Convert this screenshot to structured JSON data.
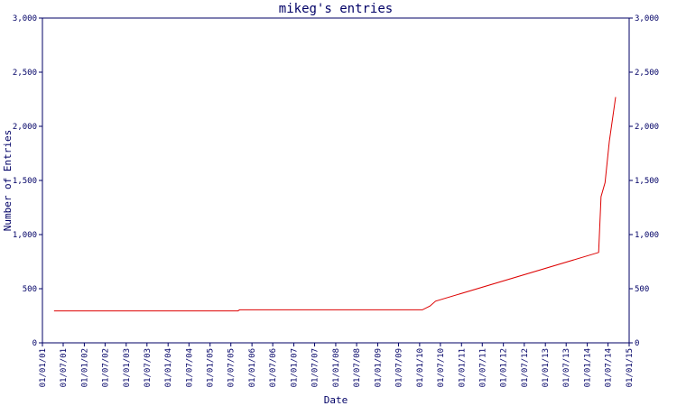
{
  "chart_data": {
    "type": "line",
    "title": "mikeg's entries",
    "x_label": "Date",
    "y_label": "Number of Entries",
    "x": [
      "12/04/01",
      "01/09/05",
      "15/09/05",
      "25/01/10",
      "01/04/10",
      "20/05/10",
      "10/04/14",
      "01/05/14",
      "05/06/14",
      "12/07/14",
      "05/09/14"
    ],
    "series": [
      {
        "name": "entries",
        "color": "#dd0000",
        "values": [
          295,
          295,
          305,
          305,
          340,
          385,
          835,
          1350,
          1480,
          1860,
          2270
        ]
      }
    ],
    "xlim": [
      "01/01/01",
      "01/01/15"
    ],
    "xticks": [
      "01/01/01",
      "01/07/01",
      "01/01/02",
      "01/07/02",
      "01/01/03",
      "01/07/03",
      "01/01/04",
      "01/07/04",
      "01/01/05",
      "01/07/05",
      "01/01/06",
      "01/07/06",
      "01/01/07",
      "01/07/07",
      "01/01/08",
      "01/07/08",
      "01/01/09",
      "01/07/09",
      "01/01/10",
      "01/07/10",
      "01/01/11",
      "01/07/11",
      "01/01/12",
      "01/07/12",
      "01/01/13",
      "01/07/13",
      "01/01/14",
      "01/07/14",
      "01/01/15"
    ],
    "ylim": [
      0,
      3000
    ],
    "yticks": [
      0,
      500,
      {
        "value": 1000,
        "label": "1,000"
      },
      {
        "value": 1500,
        "label": "1,500"
      },
      {
        "value": 2000,
        "label": "2,000"
      },
      {
        "value": 2500,
        "label": "2,500"
      },
      {
        "value": 3000,
        "label": "3,000"
      }
    ],
    "axis_color": "#000066"
  }
}
